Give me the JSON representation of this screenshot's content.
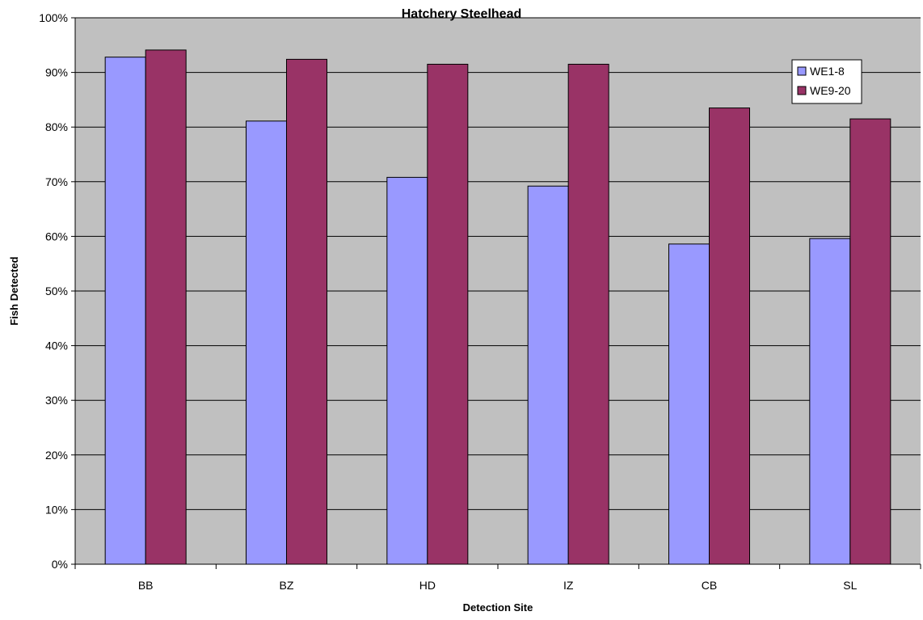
{
  "chart_data": {
    "type": "bar",
    "title": "Hatchery Steelhead",
    "xlabel": "Detection Site",
    "ylabel": "Fish Detected",
    "categories": [
      "BB",
      "BZ",
      "HD",
      "IZ",
      "CB",
      "SL"
    ],
    "series": [
      {
        "name": "WE1-8",
        "color": "#9999ff",
        "values": [
          92.8,
          81.1,
          70.8,
          69.2,
          58.6,
          59.6
        ]
      },
      {
        "name": "WE9-20",
        "color": "#993366",
        "values": [
          94.1,
          92.4,
          91.5,
          91.5,
          83.5,
          81.5
        ]
      }
    ],
    "ylim": [
      0,
      100
    ],
    "yticks": [
      0,
      10,
      20,
      30,
      40,
      50,
      60,
      70,
      80,
      90,
      100
    ],
    "ytick_labels": [
      "0%",
      "10%",
      "20%",
      "30%",
      "40%",
      "50%",
      "60%",
      "70%",
      "80%",
      "90%",
      "100%"
    ],
    "grid": true,
    "plot_background": "#c0c0c0",
    "legend_position": "top-right"
  }
}
